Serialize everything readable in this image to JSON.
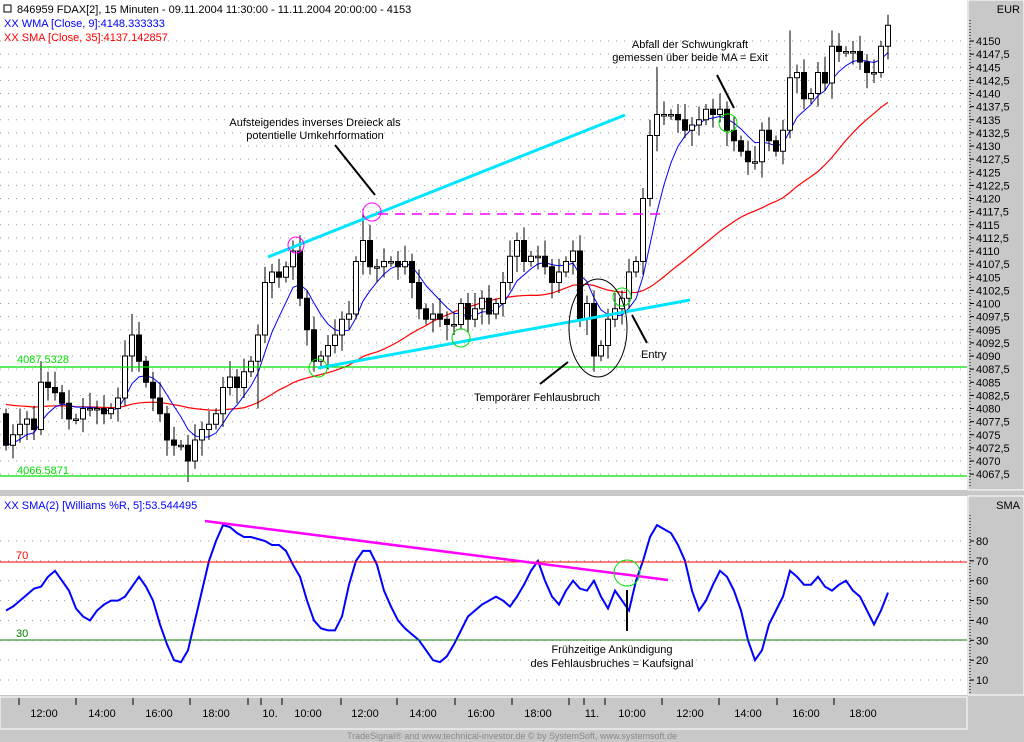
{
  "header": {
    "title": "846959  FDAX[2], 15 Minuten - 09.11.2004 11:30:00 - 11.11.2004 20:00:00 - 4153",
    "wma_legend": "XX WMA [Close, 9]:4148.333333",
    "sma_legend": "XX SMA [Close, 35]:4137.142857",
    "currency": "EUR"
  },
  "lower_panel": {
    "legend": "XX SMA(2) [Williams %R, 5]:53.544495",
    "axis_title": "SMA",
    "level_70": "70",
    "level_30": "30"
  },
  "footer": "TradeSignal® and www.technical-investor.de © by SystemSoft, www.systemsoft.de",
  "annotations": {
    "triangle_1": "Aufsteigendes inverses Dreieck als",
    "triangle_2": "potentielle Umkehrformation",
    "exit_1": "Abfall der Schwungkraft",
    "exit_2": "gemessen über beide MA = Exit",
    "fakeout": "Temporärer Fehlausbruch",
    "entry": "Entry",
    "signal_1": "Frühzeitige Ankündigung",
    "signal_2": "des Fehlausbruches = Kaufsignal",
    "support_level": "4087.5328",
    "low_level": "4066.5871"
  },
  "colors": {
    "wma": "#0000ff",
    "sma": "#ff0000",
    "williams": "#0000ff",
    "trend": "#00e5ff",
    "resistance": "#ff00ff",
    "support": "#00ff00"
  },
  "chart_data": [
    {
      "type": "candlestick",
      "title": "FDAX 15 Minuten",
      "ylim": [
        4065,
        4155
      ],
      "y_ticks": [
        "4150",
        "4147,5",
        "4145",
        "4142,5",
        "4140",
        "4137,5",
        "4135",
        "4132,5",
        "4130",
        "4127,5",
        "4125",
        "4122,5",
        "4120",
        "4117,5",
        "4115",
        "4112,5",
        "4110",
        "4107,5",
        "4105",
        "4102,5",
        "4100",
        "4097,5",
        "4095",
        "4092,5",
        "4090",
        "4087,5",
        "4085",
        "4082,5",
        "4080",
        "4077,5",
        "4075",
        "4072,5",
        "4070",
        "4067,5"
      ],
      "x_ticks": [
        "12:00",
        "14:00",
        "16:00",
        "18:00",
        "10.",
        "10:00",
        "12:00",
        "14:00",
        "16:00",
        "18:00",
        "11.",
        "10:00",
        "12:00",
        "14:00",
        "16:00",
        "18:00"
      ],
      "first_open": 4079,
      "close": [
        4073,
        4075,
        4077,
        4078,
        4076,
        4085,
        4084,
        4083,
        4081,
        4078,
        4078,
        4080,
        4080,
        4080,
        4079,
        4080,
        4082,
        4090,
        4094,
        4089,
        4085,
        4082,
        4079,
        4074,
        4073,
        4073,
        4070,
        4074,
        4076,
        4077,
        4079,
        4084,
        4086,
        4084,
        4087,
        4089,
        4094,
        4104,
        4106,
        4105,
        4107,
        4110,
        4101,
        4095,
        4089,
        4090,
        4092,
        4094,
        4097,
        4098,
        4108,
        4112,
        4107,
        4107,
        4108,
        4108,
        4107,
        4108,
        4104,
        4099,
        4097,
        4098,
        4097,
        4096,
        4096,
        4100,
        4097,
        4099,
        4101,
        4098,
        4100,
        4104,
        4109,
        4112,
        4108,
        4109,
        4109,
        4107,
        4104,
        4106,
        4108,
        4110,
        4097,
        4100,
        4090,
        4092,
        4097,
        4099,
        4101,
        4106,
        4108,
        4120,
        4132,
        4136,
        4136,
        4136,
        4135,
        4133,
        4134,
        4135,
        4137,
        4136,
        4137,
        4133,
        4131,
        4129,
        4127,
        4127,
        4133,
        4131,
        4129,
        4133,
        4143,
        4144,
        4139,
        4140,
        4144,
        4142,
        4149,
        4148,
        4148,
        4148,
        4146,
        4144,
        4144,
        4149,
        4153
      ],
      "wick_overrides": {
        "5": {
          "h": 4089
        },
        "18": {
          "h": 4098
        },
        "26": {
          "l": 4066
        },
        "36": {
          "l": 4080
        },
        "41": {
          "h": 4112
        },
        "51": {
          "h": 4118
        },
        "84": {
          "l": 4087
        },
        "93": {
          "h": 4145
        },
        "112": {
          "h": 4152
        },
        "118": {
          "h": 4152
        }
      },
      "series": [
        {
          "name": "WMA [Close, 9]",
          "last": 4148.333333
        },
        {
          "name": "SMA [Close, 35]",
          "last": 4137.142857
        }
      ]
    },
    {
      "type": "line",
      "title": "SMA(2) [Williams %R, 5]",
      "ylim": [
        5,
        95
      ],
      "y_ticks": [
        "80",
        "70",
        "60",
        "50",
        "40",
        "30",
        "20",
        "10"
      ],
      "values": [
        45,
        47,
        50,
        53,
        56,
        57,
        62,
        65,
        60,
        55,
        46,
        42,
        40,
        45,
        48,
        50,
        50,
        52,
        57,
        62,
        57,
        50,
        38,
        28,
        20,
        19,
        25,
        40,
        55,
        70,
        80,
        88,
        87,
        84,
        82,
        82,
        81,
        80,
        78,
        78,
        75,
        68,
        62,
        50,
        40,
        36,
        35,
        35,
        42,
        58,
        70,
        75,
        75,
        68,
        55,
        47,
        40,
        36,
        33,
        30,
        25,
        20,
        19,
        22,
        28,
        35,
        42,
        45,
        48,
        50,
        52,
        50,
        47,
        52,
        58,
        65,
        70,
        60,
        52,
        48,
        55,
        60,
        56,
        55,
        60,
        52,
        46,
        55,
        50,
        45,
        60,
        70,
        82,
        88,
        86,
        84,
        78,
        70,
        55,
        45,
        50,
        58,
        65,
        62,
        55,
        45,
        30,
        20,
        25,
        38,
        45,
        52,
        65,
        62,
        58,
        58,
        62,
        57,
        55,
        58,
        60,
        55,
        52,
        45,
        38,
        45,
        54
      ],
      "levels": [
        70,
        30
      ],
      "last": 53.544495
    }
  ]
}
